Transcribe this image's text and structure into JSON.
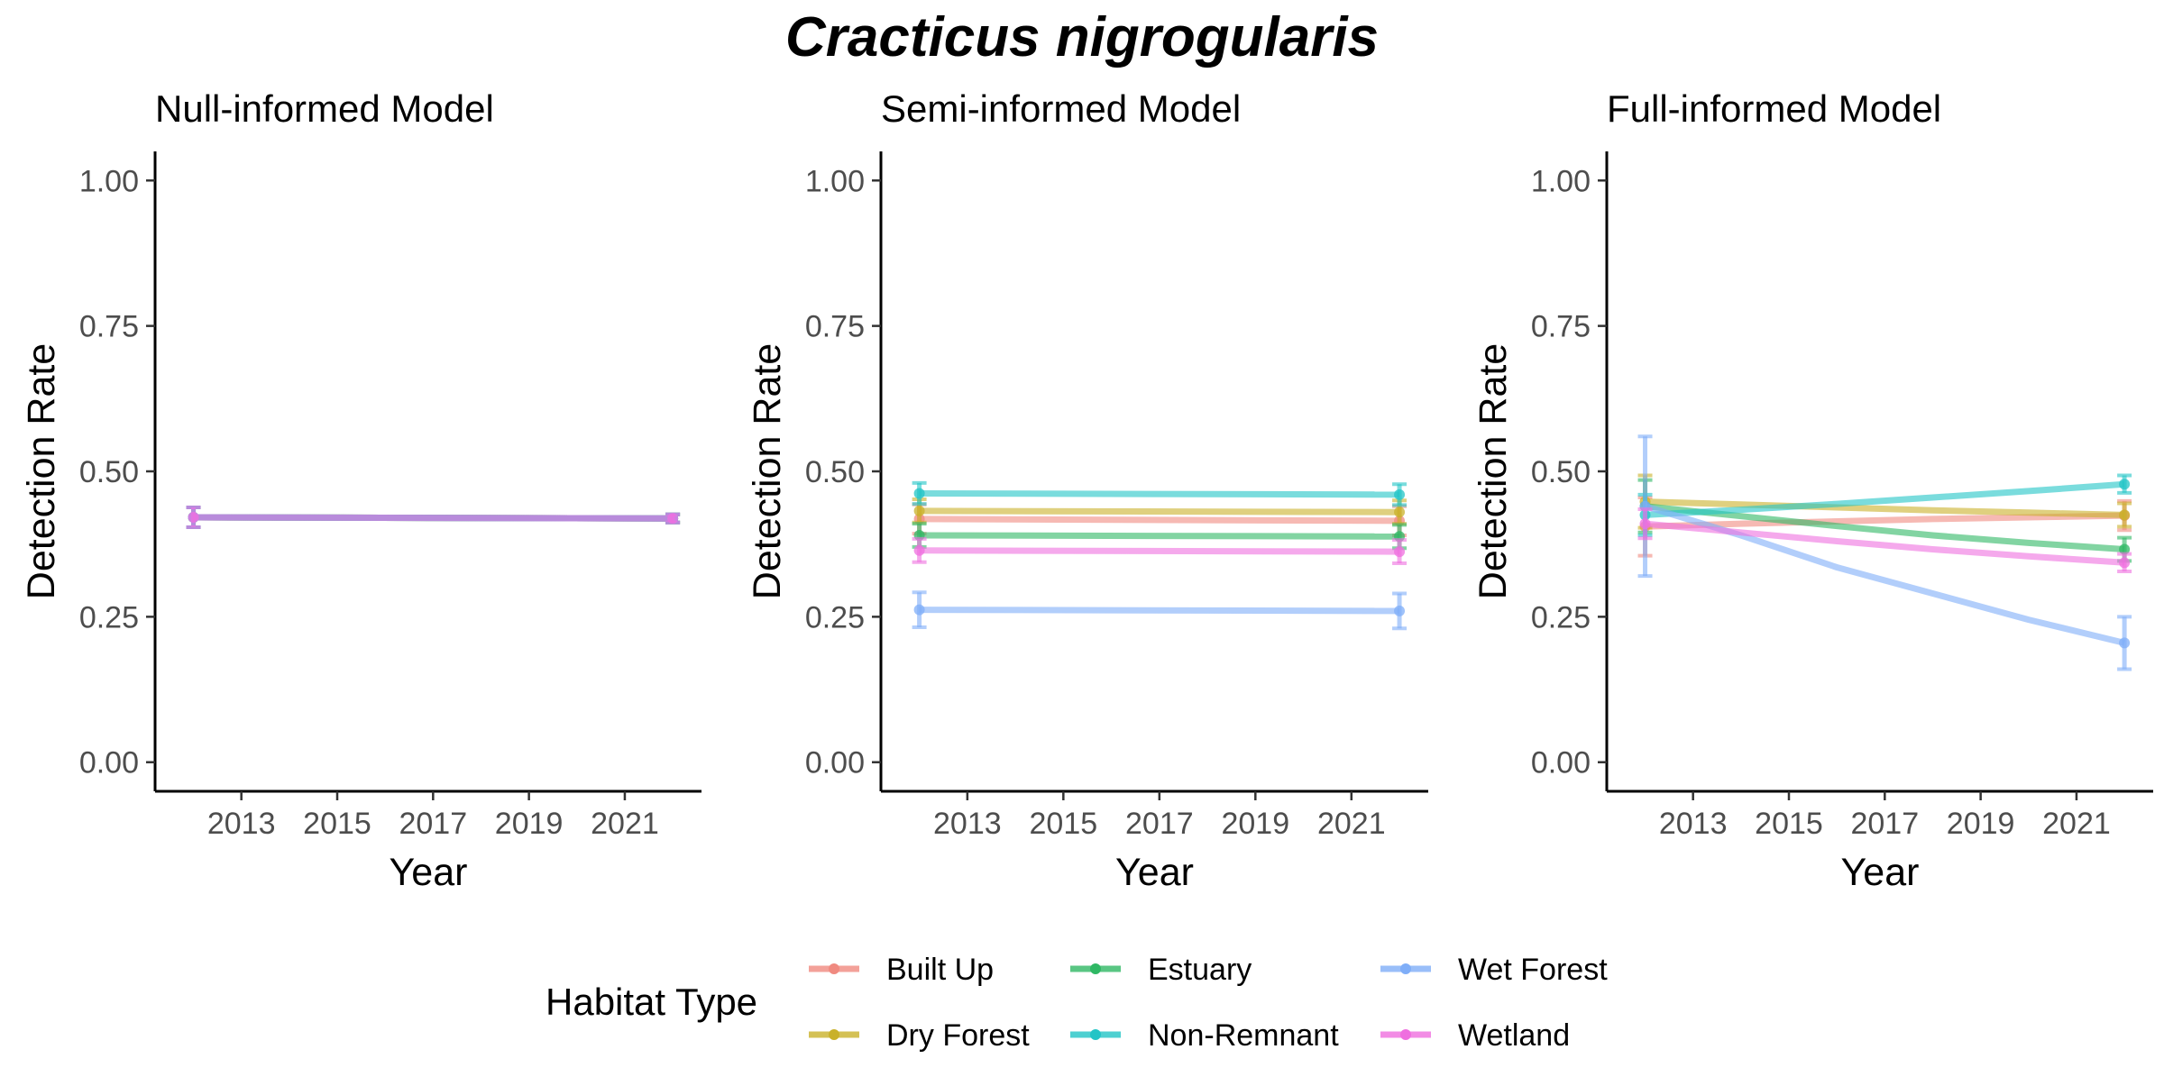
{
  "figure": {
    "title": "Cracticus nigrogularis"
  },
  "legend": {
    "title": "Habitat Type",
    "placement": "bottom",
    "entries": [
      {
        "name": "Built Up",
        "color": "#f08a80"
      },
      {
        "name": "Dry Forest",
        "color": "#c9b12a"
      },
      {
        "name": "Estuary",
        "color": "#2fb864"
      },
      {
        "name": "Non-Remnant",
        "color": "#22c4c6"
      },
      {
        "name": "Wet Forest",
        "color": "#7faef8"
      },
      {
        "name": "Wetland",
        "color": "#ef6fdf"
      }
    ]
  },
  "chart_data": [
    {
      "type": "line",
      "title": "Null-informed Model",
      "xlabel": "Year",
      "ylabel": "Detection Rate",
      "xlim": [
        2011.2,
        2022.6
      ],
      "ylim": [
        -0.05,
        1.05
      ],
      "xticks": [
        "2013",
        "2015",
        "2017",
        "2019",
        "2021"
      ],
      "yticks": [
        "0.00",
        "0.25",
        "0.50",
        "0.75",
        "1.00"
      ],
      "grid": false,
      "series": [
        {
          "name": "Built Up",
          "color": "#f08a80",
          "x": [
            2012,
            2022
          ],
          "y": [
            0.421,
            0.419
          ],
          "error": [
            0.017,
            0.007
          ]
        },
        {
          "name": "Dry Forest",
          "color": "#c9b12a",
          "x": [
            2012,
            2022
          ],
          "y": [
            0.421,
            0.419
          ],
          "error": [
            0.017,
            0.007
          ]
        },
        {
          "name": "Estuary",
          "color": "#2fb864",
          "x": [
            2012,
            2022
          ],
          "y": [
            0.421,
            0.419
          ],
          "error": [
            0.017,
            0.007
          ]
        },
        {
          "name": "Non-Remnant",
          "color": "#22c4c6",
          "x": [
            2012,
            2022
          ],
          "y": [
            0.421,
            0.419
          ],
          "error": [
            0.017,
            0.007
          ]
        },
        {
          "name": "Wet Forest",
          "color": "#7faef8",
          "x": [
            2012,
            2022
          ],
          "y": [
            0.421,
            0.419
          ],
          "error": [
            0.017,
            0.007
          ]
        },
        {
          "name": "Wetland",
          "color": "#ef6fdf",
          "x": [
            2012,
            2022
          ],
          "y": [
            0.421,
            0.419
          ],
          "error": [
            0.017,
            0.007
          ]
        }
      ]
    },
    {
      "type": "line",
      "title": "Semi-informed Model",
      "xlabel": "Year",
      "ylabel": "Detection Rate",
      "xlim": [
        2011.2,
        2022.6
      ],
      "ylim": [
        -0.05,
        1.05
      ],
      "xticks": [
        "2013",
        "2015",
        "2017",
        "2019",
        "2021"
      ],
      "yticks": [
        "0.00",
        "0.25",
        "0.50",
        "0.75",
        "1.00"
      ],
      "grid": false,
      "series": [
        {
          "name": "Built Up",
          "color": "#f08a80",
          "x": [
            2012,
            2022
          ],
          "y": [
            0.418,
            0.415
          ],
          "error": [
            0.025,
            0.025
          ]
        },
        {
          "name": "Dry Forest",
          "color": "#c9b12a",
          "x": [
            2012,
            2022
          ],
          "y": [
            0.432,
            0.43
          ],
          "error": [
            0.02,
            0.02
          ]
        },
        {
          "name": "Estuary",
          "color": "#2fb864",
          "x": [
            2012,
            2022
          ],
          "y": [
            0.39,
            0.388
          ],
          "error": [
            0.02,
            0.02
          ]
        },
        {
          "name": "Non-Remnant",
          "color": "#22c4c6",
          "x": [
            2012,
            2022
          ],
          "y": [
            0.462,
            0.46
          ],
          "error": [
            0.018,
            0.018
          ]
        },
        {
          "name": "Wet Forest",
          "color": "#7faef8",
          "x": [
            2012,
            2022
          ],
          "y": [
            0.262,
            0.26
          ],
          "error": [
            0.03,
            0.03
          ]
        },
        {
          "name": "Wetland",
          "color": "#ef6fdf",
          "x": [
            2012,
            2022
          ],
          "y": [
            0.364,
            0.362
          ],
          "error": [
            0.02,
            0.02
          ]
        }
      ]
    },
    {
      "type": "line",
      "title": "Full-informed Model",
      "xlabel": "Year",
      "ylabel": "Detection Rate",
      "xlim": [
        2011.2,
        2022.6
      ],
      "ylim": [
        -0.05,
        1.05
      ],
      "xticks": [
        "2013",
        "2015",
        "2017",
        "2019",
        "2021"
      ],
      "yticks": [
        "0.00",
        "0.25",
        "0.50",
        "0.75",
        "1.00"
      ],
      "grid": false,
      "series": [
        {
          "name": "Built Up",
          "color": "#f08a80",
          "x": [
            2012,
            2014,
            2016,
            2018,
            2020,
            2022
          ],
          "y": [
            0.405,
            0.41,
            0.414,
            0.418,
            0.421,
            0.424
          ],
          "error": [
            0.05,
            null,
            null,
            null,
            null,
            0.025
          ]
        },
        {
          "name": "Dry Forest",
          "color": "#c9b12a",
          "x": [
            2012,
            2014,
            2016,
            2018,
            2020,
            2022
          ],
          "y": [
            0.448,
            0.443,
            0.438,
            0.433,
            0.429,
            0.425
          ],
          "error": [
            0.045,
            null,
            null,
            null,
            null,
            0.02
          ]
        },
        {
          "name": "Estuary",
          "color": "#2fb864",
          "x": [
            2012,
            2014,
            2016,
            2018,
            2020,
            2022
          ],
          "y": [
            0.44,
            0.423,
            0.406,
            0.39,
            0.377,
            0.366
          ],
          "error": [
            0.045,
            null,
            null,
            null,
            null,
            0.02
          ]
        },
        {
          "name": "Non-Remnant",
          "color": "#22c4c6",
          "x": [
            2012,
            2014,
            2016,
            2018,
            2020,
            2022
          ],
          "y": [
            0.425,
            0.434,
            0.444,
            0.455,
            0.466,
            0.478
          ],
          "error": [
            0.035,
            null,
            null,
            null,
            null,
            0.015
          ]
        },
        {
          "name": "Wet Forest",
          "color": "#7faef8",
          "x": [
            2012,
            2014,
            2016,
            2018,
            2020,
            2022
          ],
          "y": [
            0.44,
            0.39,
            0.335,
            0.29,
            0.245,
            0.205
          ],
          "error": [
            0.12,
            null,
            null,
            null,
            null,
            0.045
          ]
        },
        {
          "name": "Wetland",
          "color": "#ef6fdf",
          "x": [
            2012,
            2014,
            2016,
            2018,
            2020,
            2022
          ],
          "y": [
            0.41,
            0.395,
            0.38,
            0.366,
            0.354,
            0.343
          ],
          "error": [
            0.025,
            null,
            null,
            null,
            null,
            0.015
          ]
        }
      ]
    }
  ]
}
